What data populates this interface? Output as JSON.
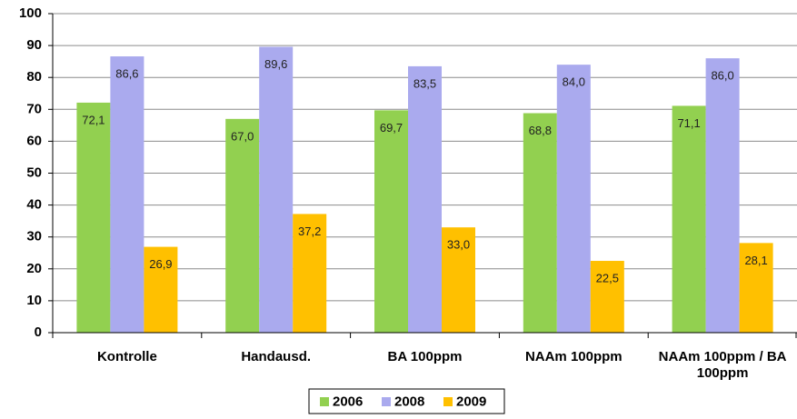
{
  "chart_data": {
    "type": "bar",
    "categories": [
      "Kontrolle",
      "Handausd.",
      "BA 100ppm",
      "NAAm 100ppm",
      "NAAm 100ppm / BA 100ppm"
    ],
    "series": [
      {
        "name": "2006",
        "color": "#92d050",
        "values": [
          72.1,
          67.0,
          69.7,
          68.8,
          71.1
        ],
        "value_labels": [
          "72,1",
          "67,0",
          "69,7",
          "68,8",
          "71,1"
        ]
      },
      {
        "name": "2008",
        "color": "#aaaaee",
        "values": [
          86.6,
          89.6,
          83.5,
          84.0,
          86.0
        ],
        "value_labels": [
          "86,6",
          "89,6",
          "83,5",
          "84,0",
          "86,0"
        ]
      },
      {
        "name": "2009",
        "color": "#ffc000",
        "values": [
          26.9,
          37.2,
          33.0,
          22.5,
          28.1
        ],
        "value_labels": [
          "26,9",
          "37,2",
          "33,0",
          "22,5",
          "28,1"
        ]
      }
    ],
    "ylim": [
      0,
      100
    ],
    "yticks": [
      0,
      10,
      20,
      30,
      40,
      50,
      60,
      70,
      80,
      90,
      100
    ],
    "grid": true,
    "legend": "bottom"
  }
}
